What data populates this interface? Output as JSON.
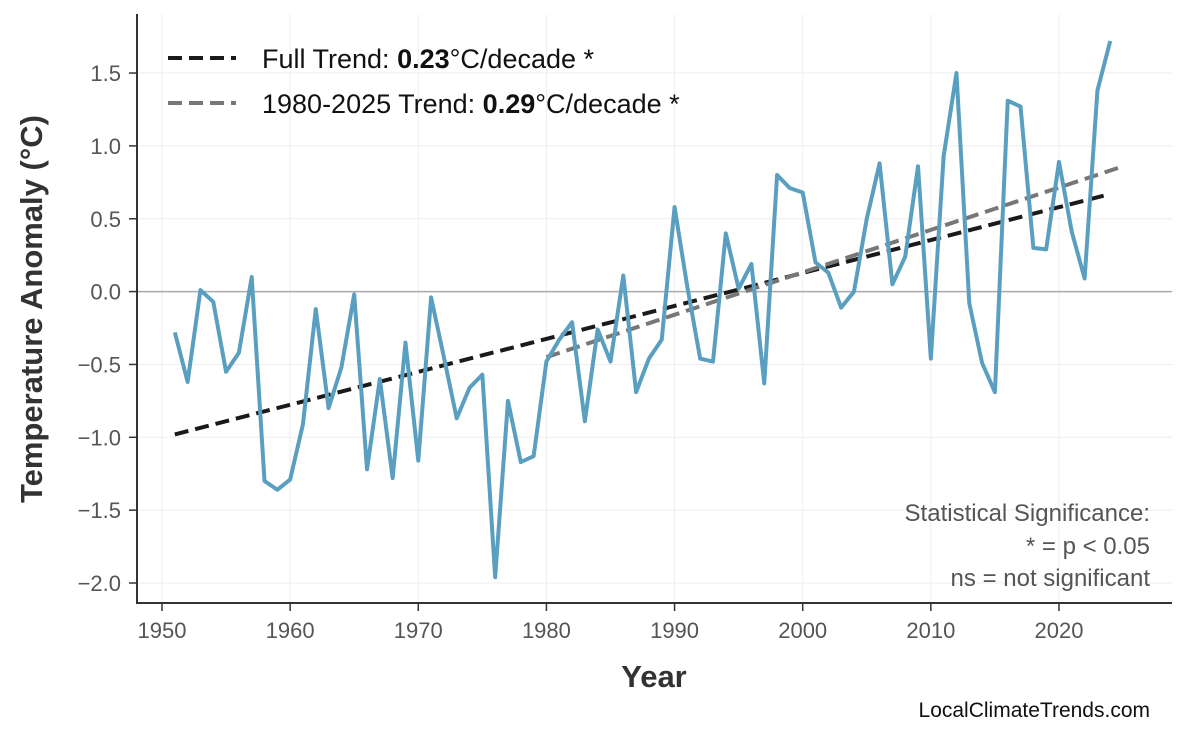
{
  "chart_data": {
    "type": "line",
    "title": "",
    "xlabel": "Year",
    "ylabel": "Temperature Anomaly (°C)",
    "xlim": [
      1948,
      2029
    ],
    "ylim": [
      -2.14,
      1.9
    ],
    "grid": true,
    "legend_placement": "top-left",
    "x_ticks": [
      1950,
      1960,
      1970,
      1980,
      1990,
      2000,
      2010,
      2020
    ],
    "y_ticks": [
      -2.0,
      -1.5,
      -1.0,
      -0.5,
      0.0,
      0.5,
      1.0,
      1.5
    ],
    "y_tick_labels": [
      "−2.0",
      "−1.5",
      "−1.0",
      "−0.5",
      "0.0",
      "0.5",
      "1.0",
      "1.5"
    ],
    "series": [
      {
        "color": "#5a9fc0",
        "x": [
          1951,
          1952,
          1953,
          1954,
          1955,
          1956,
          1957,
          1958,
          1959,
          1960,
          1961,
          1962,
          1963,
          1964,
          1965,
          1966,
          1967,
          1968,
          1969,
          1970,
          1971,
          1972,
          1973,
          1974,
          1975,
          1976,
          1977,
          1978,
          1979,
          1980,
          1981,
          1982,
          1983,
          1984,
          1985,
          1986,
          1987,
          1988,
          1989,
          1990,
          1991,
          1992,
          1993,
          1994,
          1995,
          1996,
          1997,
          1998,
          1999,
          2000,
          2001,
          2002,
          2003,
          2004,
          2005,
          2006,
          2007,
          2008,
          2009,
          2010,
          2011,
          2012,
          2013,
          2014,
          2015,
          2016,
          2017,
          2018,
          2019,
          2020,
          2021,
          2022,
          2023,
          2024
        ],
        "y": [
          -0.28,
          -0.62,
          0.01,
          -0.07,
          -0.55,
          -0.42,
          0.1,
          -1.3,
          -1.36,
          -1.29,
          -0.91,
          -0.12,
          -0.8,
          -0.52,
          -0.02,
          -1.22,
          -0.6,
          -1.28,
          -0.35,
          -1.16,
          -0.04,
          -0.45,
          -0.87,
          -0.66,
          -0.57,
          -1.96,
          -0.75,
          -1.17,
          -1.13,
          -0.48,
          -0.33,
          -0.21,
          -0.89,
          -0.26,
          -0.48,
          0.11,
          -0.69,
          -0.46,
          -0.33,
          0.58,
          0.03,
          -0.46,
          -0.48,
          0.4,
          0.02,
          0.19,
          -0.63,
          0.8,
          0.71,
          0.68,
          0.2,
          0.13,
          -0.11,
          0.0,
          0.5,
          0.88,
          0.05,
          0.24,
          0.86,
          -0.46,
          0.93,
          1.5,
          -0.08,
          -0.49,
          -0.69,
          1.31,
          1.27,
          0.3,
          0.29,
          0.89,
          0.41,
          0.09,
          1.38,
          1.72
        ]
      }
    ],
    "trends": [
      {
        "label_prefix": "Full Trend: ",
        "value": "0.23",
        "label_suffix": "°C/decade *",
        "color": "#1a1a1a",
        "x": [
          1951,
          2024
        ],
        "y": [
          -0.98,
          0.67
        ]
      },
      {
        "label_prefix": "1980-2025 Trend: ",
        "value": "0.29",
        "label_suffix": "°C/decade *",
        "color": "#777777",
        "x": [
          1980,
          2025
        ],
        "y": [
          -0.45,
          0.86
        ]
      }
    ],
    "annotations": [
      "Statistical Significance:",
      "* = p < 0.05",
      "ns = not significant"
    ]
  },
  "credit": "LocalClimateTrends.com"
}
